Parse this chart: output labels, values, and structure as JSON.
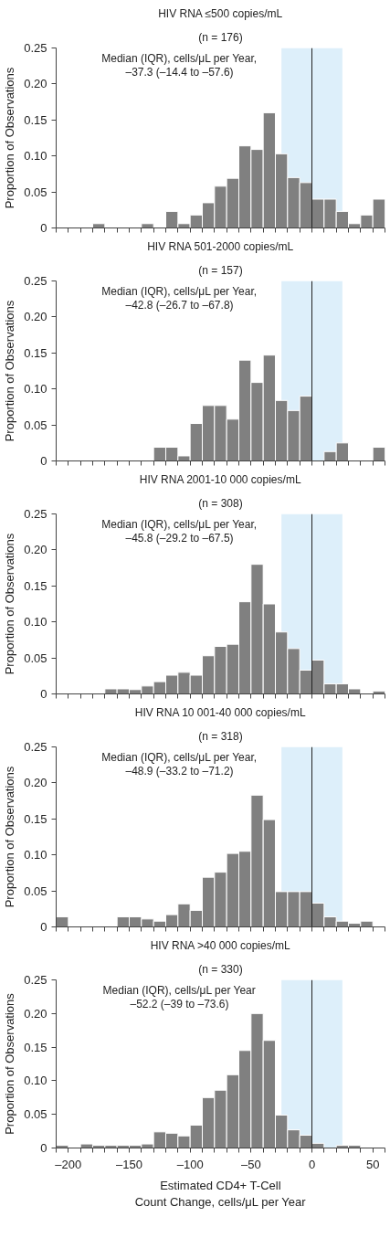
{
  "chart_data": [
    {
      "type": "histogram",
      "title": "HIV RNA ≤500 copies/mL",
      "subtitle": "(n = 176)",
      "annotations": [
        "Median (IQR), cells/μL per Year,",
        "–37.3 (–14.4 to –57.6)"
      ],
      "ylabel": "Proportion of Observations",
      "color": "#808080",
      "tick_labels": "y",
      "bins": [
        -210,
        -200,
        -190,
        -180,
        -170,
        -160,
        -150,
        -140,
        -130,
        -120,
        -110,
        -100,
        -90,
        -80,
        -70,
        -60,
        -50,
        -40,
        -30,
        -20,
        -10,
        0,
        10,
        20,
        30,
        40,
        50,
        60
      ],
      "values": [
        0,
        0,
        0,
        0.006,
        0,
        0,
        0,
        0.006,
        0,
        0.023,
        0.006,
        0.018,
        0.035,
        0.058,
        0.069,
        0.114,
        0.109,
        0.16,
        0.103,
        0.07,
        0.063,
        0.04,
        0.04,
        0.023,
        0.006,
        0.018,
        0.04
      ],
      "xlim": [
        -210,
        60
      ],
      "ylim": [
        0,
        0.25
      ],
      "xticks": [
        {
          "value": -210,
          "label": null
        },
        {
          "value": -200,
          "label": null
        },
        {
          "value": -190,
          "label": null
        },
        {
          "value": -180,
          "label": null
        },
        {
          "value": -170,
          "label": null
        },
        {
          "value": -160,
          "label": null
        },
        {
          "value": -150,
          "label": null
        },
        {
          "value": -140,
          "label": null
        },
        {
          "value": -130,
          "label": null
        },
        {
          "value": -120,
          "label": null
        },
        {
          "value": -110,
          "label": null
        },
        {
          "value": -100,
          "label": null
        },
        {
          "value": -90,
          "label": null
        },
        {
          "value": -80,
          "label": null
        },
        {
          "value": -70,
          "label": null
        },
        {
          "value": -60,
          "label": null
        },
        {
          "value": -50,
          "label": null
        },
        {
          "value": -40,
          "label": null
        },
        {
          "value": -30,
          "label": null
        },
        {
          "value": -20,
          "label": null
        },
        {
          "value": -10,
          "label": null
        },
        {
          "value": 0,
          "label": null
        },
        {
          "value": 10,
          "label": null
        },
        {
          "value": 20,
          "label": null
        },
        {
          "value": 30,
          "label": null
        },
        {
          "value": 40,
          "label": null
        },
        {
          "value": 50,
          "label": null
        },
        {
          "value": 60,
          "label": null
        }
      ],
      "yticks": [
        0,
        {
          "value": 0.05,
          "label": "0.05"
        },
        {
          "value": 0.1,
          "label": "0.10"
        },
        {
          "value": 0.15,
          "label": "0.15"
        },
        {
          "value": 0.2,
          "label": "0.20"
        },
        {
          "value": 0.25,
          "label": "0.25"
        }
      ],
      "bands": [
        {
          "axis": "x",
          "from": -25,
          "to": 25,
          "color": "#ddeffa"
        }
      ],
      "ref_lines": [
        {
          "axis": "x",
          "value": 0,
          "color": "#222222"
        }
      ]
    },
    {
      "type": "histogram",
      "title": "HIV RNA 501-2000 copies/mL",
      "subtitle": "(n = 157)",
      "annotations": [
        "Median (IQR), cells/μL per Year,",
        "–42.8 (–26.7 to –67.8)"
      ],
      "ylabel": "Proportion of Observations",
      "color": "#808080",
      "tick_labels": "y",
      "bins": [
        -210,
        -200,
        -190,
        -180,
        -170,
        -160,
        -150,
        -140,
        -130,
        -120,
        -110,
        -100,
        -90,
        -80,
        -70,
        -60,
        -50,
        -40,
        -30,
        -20,
        -10,
        0,
        10,
        20,
        30,
        40,
        50,
        60
      ],
      "values": [
        0,
        0,
        0,
        0,
        0,
        0,
        0,
        0,
        0.019,
        0.019,
        0.007,
        0.052,
        0.077,
        0.077,
        0.058,
        0.14,
        0.109,
        0.147,
        0.084,
        0.07,
        0.09,
        0,
        0.013,
        0.025,
        0,
        0,
        0.019
      ],
      "xlim": [
        -210,
        60
      ],
      "ylim": [
        0,
        0.25
      ],
      "xticks": [
        {
          "value": -210,
          "label": null
        },
        {
          "value": -200,
          "label": null
        },
        {
          "value": -190,
          "label": null
        },
        {
          "value": -180,
          "label": null
        },
        {
          "value": -170,
          "label": null
        },
        {
          "value": -160,
          "label": null
        },
        {
          "value": -150,
          "label": null
        },
        {
          "value": -140,
          "label": null
        },
        {
          "value": -130,
          "label": null
        },
        {
          "value": -120,
          "label": null
        },
        {
          "value": -110,
          "label": null
        },
        {
          "value": -100,
          "label": null
        },
        {
          "value": -90,
          "label": null
        },
        {
          "value": -80,
          "label": null
        },
        {
          "value": -70,
          "label": null
        },
        {
          "value": -60,
          "label": null
        },
        {
          "value": -50,
          "label": null
        },
        {
          "value": -40,
          "label": null
        },
        {
          "value": -30,
          "label": null
        },
        {
          "value": -20,
          "label": null
        },
        {
          "value": -10,
          "label": null
        },
        {
          "value": 0,
          "label": null
        },
        {
          "value": 10,
          "label": null
        },
        {
          "value": 20,
          "label": null
        },
        {
          "value": 30,
          "label": null
        },
        {
          "value": 40,
          "label": null
        },
        {
          "value": 50,
          "label": null
        },
        {
          "value": 60,
          "label": null
        }
      ],
      "yticks": [
        0,
        {
          "value": 0.05,
          "label": "0.05"
        },
        {
          "value": 0.1,
          "label": "0.10"
        },
        {
          "value": 0.15,
          "label": "0.15"
        },
        {
          "value": 0.2,
          "label": "0.20"
        },
        {
          "value": 0.25,
          "label": "0.25"
        }
      ],
      "bands": [
        {
          "axis": "x",
          "from": -25,
          "to": 25,
          "color": "#ddeffa"
        }
      ],
      "ref_lines": [
        {
          "axis": "x",
          "value": 0,
          "color": "#222222"
        }
      ]
    },
    {
      "type": "histogram",
      "title": "HIV RNA 2001-10 000 copies/mL",
      "subtitle": "(n = 308)",
      "annotations": [
        "Median (IQR), cells/μL per Year,",
        "–45.8 (–29.2 to –67.5)"
      ],
      "ylabel": "Proportion of Observations",
      "color": "#808080",
      "tick_labels": "y",
      "bins": [
        -210,
        -200,
        -190,
        -180,
        -170,
        -160,
        -150,
        -140,
        -130,
        -120,
        -110,
        -100,
        -90,
        -80,
        -70,
        -60,
        -50,
        -40,
        -30,
        -20,
        -10,
        0,
        10,
        20,
        30,
        40,
        50,
        60
      ],
      "values": [
        0,
        0,
        0,
        0,
        0.007,
        0.007,
        0.006,
        0.011,
        0.017,
        0.026,
        0.03,
        0.026,
        0.053,
        0.066,
        0.069,
        0.128,
        0.18,
        0.125,
        0.086,
        0.063,
        0.033,
        0.047,
        0.014,
        0.014,
        0.007,
        0,
        0.004
      ],
      "xlim": [
        -210,
        60
      ],
      "ylim": [
        0,
        0.25
      ],
      "xticks": [
        {
          "value": -210,
          "label": null
        },
        {
          "value": -200,
          "label": null
        },
        {
          "value": -190,
          "label": null
        },
        {
          "value": -180,
          "label": null
        },
        {
          "value": -170,
          "label": null
        },
        {
          "value": -160,
          "label": null
        },
        {
          "value": -150,
          "label": null
        },
        {
          "value": -140,
          "label": null
        },
        {
          "value": -130,
          "label": null
        },
        {
          "value": -120,
          "label": null
        },
        {
          "value": -110,
          "label": null
        },
        {
          "value": -100,
          "label": null
        },
        {
          "value": -90,
          "label": null
        },
        {
          "value": -80,
          "label": null
        },
        {
          "value": -70,
          "label": null
        },
        {
          "value": -60,
          "label": null
        },
        {
          "value": -50,
          "label": null
        },
        {
          "value": -40,
          "label": null
        },
        {
          "value": -30,
          "label": null
        },
        {
          "value": -20,
          "label": null
        },
        {
          "value": -10,
          "label": null
        },
        {
          "value": 0,
          "label": null
        },
        {
          "value": 10,
          "label": null
        },
        {
          "value": 20,
          "label": null
        },
        {
          "value": 30,
          "label": null
        },
        {
          "value": 40,
          "label": null
        },
        {
          "value": 50,
          "label": null
        },
        {
          "value": 60,
          "label": null
        }
      ],
      "yticks": [
        0,
        {
          "value": 0.05,
          "label": "0.05"
        },
        {
          "value": 0.1,
          "label": "0.10"
        },
        {
          "value": 0.15,
          "label": "0.15"
        },
        {
          "value": 0.2,
          "label": "0.20"
        },
        {
          "value": 0.25,
          "label": "0.25"
        }
      ],
      "bands": [
        {
          "axis": "x",
          "from": -25,
          "to": 25,
          "color": "#ddeffa"
        }
      ],
      "ref_lines": [
        {
          "axis": "x",
          "value": 0,
          "color": "#222222"
        }
      ]
    },
    {
      "type": "histogram",
      "title": "HIV RNA 10 001-40 000 copies/mL",
      "subtitle": "(n = 318)",
      "annotations": [
        "Median (IQR), cells/μL per Year,",
        "–48.9 (–33.2 to –71.2)"
      ],
      "ylabel": "Proportion of Observations",
      "color": "#808080",
      "tick_labels": "y",
      "bins": [
        -210,
        -200,
        -190,
        -180,
        -170,
        -160,
        -150,
        -140,
        -130,
        -120,
        -110,
        -100,
        -90,
        -80,
        -70,
        -60,
        -50,
        -40,
        -30,
        -20,
        -10,
        0,
        10,
        20,
        30,
        40,
        50,
        60
      ],
      "values": [
        0.014,
        0,
        0,
        0,
        0,
        0.014,
        0.014,
        0.011,
        0.008,
        0.017,
        0.032,
        0.023,
        0.069,
        0.076,
        0.102,
        0.105,
        0.183,
        0.149,
        0.049,
        0.049,
        0.049,
        0.033,
        0.014,
        0.008,
        0.005,
        0.008,
        0
      ],
      "xlim": [
        -210,
        60
      ],
      "ylim": [
        0,
        0.25
      ],
      "xticks": [
        {
          "value": -210,
          "label": null
        },
        {
          "value": -200,
          "label": null
        },
        {
          "value": -190,
          "label": null
        },
        {
          "value": -180,
          "label": null
        },
        {
          "value": -170,
          "label": null
        },
        {
          "value": -160,
          "label": null
        },
        {
          "value": -150,
          "label": null
        },
        {
          "value": -140,
          "label": null
        },
        {
          "value": -130,
          "label": null
        },
        {
          "value": -120,
          "label": null
        },
        {
          "value": -110,
          "label": null
        },
        {
          "value": -100,
          "label": null
        },
        {
          "value": -90,
          "label": null
        },
        {
          "value": -80,
          "label": null
        },
        {
          "value": -70,
          "label": null
        },
        {
          "value": -60,
          "label": null
        },
        {
          "value": -50,
          "label": null
        },
        {
          "value": -40,
          "label": null
        },
        {
          "value": -30,
          "label": null
        },
        {
          "value": -20,
          "label": null
        },
        {
          "value": -10,
          "label": null
        },
        {
          "value": 0,
          "label": null
        },
        {
          "value": 10,
          "label": null
        },
        {
          "value": 20,
          "label": null
        },
        {
          "value": 30,
          "label": null
        },
        {
          "value": 40,
          "label": null
        },
        {
          "value": 50,
          "label": null
        },
        {
          "value": 60,
          "label": null
        }
      ],
      "yticks": [
        0,
        {
          "value": 0.05,
          "label": "0.05"
        },
        {
          "value": 0.1,
          "label": "0.10"
        },
        {
          "value": 0.15,
          "label": "0.15"
        },
        {
          "value": 0.2,
          "label": "0.20"
        },
        {
          "value": 0.25,
          "label": "0.25"
        }
      ],
      "bands": [
        {
          "axis": "x",
          "from": -25,
          "to": 25,
          "color": "#ddeffa"
        }
      ],
      "ref_lines": [
        {
          "axis": "x",
          "value": 0,
          "color": "#222222"
        }
      ]
    },
    {
      "type": "histogram",
      "title": "HIV RNA >40 000 copies/mL",
      "subtitle": "(n = 330)",
      "annotations": [
        "Median (IQR), cells/μL per Year",
        "–52.2 (–39 to –73.6)"
      ],
      "ylabel": "Proportion of Observations",
      "xlabel": "Estimated CD4+ T-Cell\nCount Change, cells/μL per Year",
      "color": "#808080",
      "bins": [
        -210,
        -200,
        -190,
        -180,
        -170,
        -160,
        -150,
        -140,
        -130,
        -120,
        -110,
        -100,
        -90,
        -80,
        -70,
        -60,
        -50,
        -40,
        -30,
        -20,
        -10,
        0,
        10,
        20,
        30,
        40,
        50,
        60
      ],
      "values": [
        0.004,
        0,
        0.006,
        0.004,
        0.004,
        0.004,
        0.004,
        0.006,
        0.024,
        0.022,
        0.018,
        0.034,
        0.075,
        0.086,
        0.109,
        0.145,
        0.2,
        0.16,
        0.049,
        0.027,
        0.019,
        0.007,
        0,
        0.004,
        0.004,
        0,
        0
      ],
      "xlim": [
        -210,
        60
      ],
      "ylim": [
        0,
        0.25
      ],
      "xticks": [
        {
          "value": -210,
          "label": null
        },
        {
          "value": -200,
          "label": "–200"
        },
        {
          "value": -190,
          "label": null
        },
        {
          "value": -180,
          "label": null
        },
        {
          "value": -170,
          "label": null
        },
        {
          "value": -160,
          "label": null
        },
        {
          "value": -150,
          "label": "–150"
        },
        {
          "value": -140,
          "label": null
        },
        {
          "value": -130,
          "label": null
        },
        {
          "value": -120,
          "label": null
        },
        {
          "value": -110,
          "label": null
        },
        {
          "value": -100,
          "label": "–100"
        },
        {
          "value": -90,
          "label": null
        },
        {
          "value": -80,
          "label": null
        },
        {
          "value": -70,
          "label": null
        },
        {
          "value": -60,
          "label": null
        },
        {
          "value": -50,
          "label": "–50"
        },
        {
          "value": -40,
          "label": null
        },
        {
          "value": -30,
          "label": null
        },
        {
          "value": -20,
          "label": null
        },
        {
          "value": -10,
          "label": null
        },
        0,
        {
          "value": 10,
          "label": null
        },
        {
          "value": 20,
          "label": null
        },
        {
          "value": 30,
          "label": null
        },
        {
          "value": 40,
          "label": null
        },
        50,
        {
          "value": 60,
          "label": null
        }
      ],
      "yticks": [
        0,
        {
          "value": 0.05,
          "label": "0.05"
        },
        {
          "value": 0.1,
          "label": "0.10"
        },
        {
          "value": 0.15,
          "label": "0.15"
        },
        {
          "value": 0.2,
          "label": "0.20"
        },
        {
          "value": 0.25,
          "label": "0.25"
        }
      ],
      "bands": [
        {
          "axis": "x",
          "from": -25,
          "to": 25,
          "color": "#ddeffa"
        }
      ],
      "ref_lines": [
        {
          "axis": "x",
          "value": 0,
          "color": "#222222"
        }
      ]
    }
  ]
}
